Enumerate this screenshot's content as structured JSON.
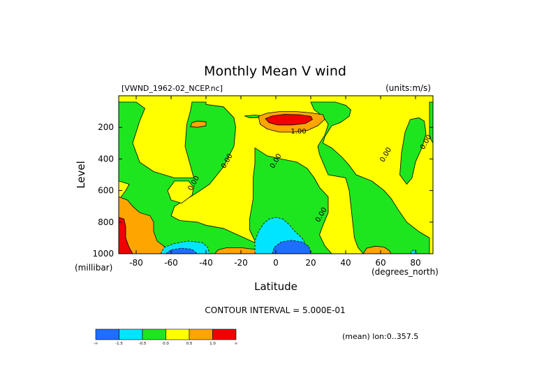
{
  "chart_data": {
    "type": "contour",
    "title": "Monthly Mean V wind",
    "dataset_label": "[VWND_1962-02_NCEP.nc]",
    "units_label": "(units:m/s)",
    "xlabel": "Latitude",
    "x_units_label": "(degrees_north)",
    "ylabel": "Level",
    "y_units_label": "(millibar)",
    "xlim": [
      -90,
      90
    ],
    "ylim": [
      1000,
      0
    ],
    "x_ticks": [
      -80,
      -60,
      -40,
      -20,
      0,
      20,
      40,
      60,
      80
    ],
    "x_tick_labels": [
      "-80",
      "-60",
      "-40",
      "-20",
      "0",
      "20",
      "40",
      "60",
      "80"
    ],
    "y_ticks": [
      200,
      400,
      600,
      800,
      1000
    ],
    "y_tick_labels": [
      "200",
      "400",
      "600",
      "800",
      "1000"
    ],
    "contour_interval_label": "CONTOUR INTERVAL = 5.000E-01",
    "mean_label": "(mean) lon:0..357.5",
    "contour_labels": [
      {
        "text": "1.00",
        "lat": 13,
        "lev": 240
      },
      {
        "text": "0.00",
        "lat": -27,
        "lev": 420
      },
      {
        "text": "0.00",
        "lat": 1,
        "lev": 420
      },
      {
        "text": "0.00",
        "lat": -46,
        "lev": 560
      },
      {
        "text": "0.00",
        "lat": 27,
        "lev": 760
      },
      {
        "text": "0.00",
        "lat": 64,
        "lev": 380
      },
      {
        "text": "0.00",
        "lat": 87,
        "lev": 300
      }
    ],
    "colorbar": {
      "colors": [
        "#1e6eff",
        "#00e5ff",
        "#1ee61e",
        "#ffff00",
        "#ffa500",
        "#f00000"
      ],
      "tick_labels": [
        "-∞",
        "-1.5",
        "-0.5",
        "0.0",
        "0.5",
        "1.0",
        "∞"
      ]
    },
    "regions": [
      {
        "level": "positive_0_0.5",
        "color": "#ffff00",
        "polygon": [
          [
            -90,
            0
          ],
          [
            90,
            0
          ],
          [
            90,
            1000
          ],
          [
            -90,
            1000
          ]
        ]
      },
      {
        "level": "negative_0_-0.5",
        "color": "#1ee61e",
        "polygon": [
          [
            -90,
            40
          ],
          [
            -80,
            40
          ],
          [
            -75,
            80
          ],
          [
            -78,
            160
          ],
          [
            -82,
            300
          ],
          [
            -78,
            420
          ],
          [
            -70,
            480
          ],
          [
            -58,
            520
          ],
          [
            -47,
            520
          ],
          [
            -50,
            400
          ],
          [
            -52,
            320
          ],
          [
            -51,
            180
          ],
          [
            -49,
            100
          ],
          [
            -48,
            40
          ],
          [
            -40,
            40
          ],
          [
            -40,
            55
          ],
          [
            -30,
            70
          ],
          [
            -24,
            140
          ],
          [
            -23,
            200
          ],
          [
            -24,
            320
          ],
          [
            -30,
            450
          ],
          [
            -38,
            560
          ],
          [
            -46,
            620
          ],
          [
            -52,
            660
          ],
          [
            -58,
            700
          ],
          [
            -60,
            760
          ],
          [
            -55,
            790
          ],
          [
            -45,
            800
          ],
          [
            -40,
            820
          ],
          [
            -30,
            840
          ],
          [
            -24,
            870
          ],
          [
            -18,
            900
          ],
          [
            -12,
            930
          ],
          [
            -8,
            970
          ],
          [
            -5,
            1000
          ],
          [
            -90,
            1000
          ],
          [
            -90,
            660
          ],
          [
            -86,
            600
          ],
          [
            -84,
            560
          ],
          [
            -90,
            540
          ]
        ]
      },
      {
        "level": "negative_0_-0.5",
        "color": "#1ee61e",
        "polygon": [
          [
            -12,
            330
          ],
          [
            -5,
            380
          ],
          [
            3,
            400
          ],
          [
            12,
            420
          ],
          [
            18,
            460
          ],
          [
            22,
            520
          ],
          [
            25,
            580
          ],
          [
            30,
            640
          ],
          [
            30,
            740
          ],
          [
            27,
            820
          ],
          [
            25,
            880
          ],
          [
            28,
            950
          ],
          [
            32,
            1000
          ],
          [
            -5,
            1000
          ],
          [
            -5,
            960
          ],
          [
            -12,
            920
          ],
          [
            -15,
            850
          ],
          [
            -15,
            780
          ],
          [
            -13,
            650
          ],
          [
            -13,
            520
          ],
          [
            -12,
            430
          ]
        ]
      },
      {
        "level": "negative_0_-0.5",
        "color": "#1ee61e",
        "polygon": [
          [
            20,
            40
          ],
          [
            34,
            40
          ],
          [
            40,
            60
          ],
          [
            43,
            90
          ],
          [
            42,
            130
          ],
          [
            37,
            170
          ],
          [
            32,
            190
          ],
          [
            28,
            260
          ],
          [
            27,
            300
          ],
          [
            32,
            330
          ],
          [
            38,
            390
          ],
          [
            42,
            440
          ],
          [
            46,
            500
          ],
          [
            55,
            540
          ],
          [
            62,
            600
          ],
          [
            66,
            650
          ],
          [
            70,
            720
          ],
          [
            75,
            800
          ],
          [
            82,
            860
          ],
          [
            88,
            900
          ],
          [
            88,
            1000
          ],
          [
            50,
            1000
          ],
          [
            47,
            960
          ],
          [
            45,
            900
          ],
          [
            44,
            800
          ],
          [
            43,
            700
          ],
          [
            42,
            600
          ],
          [
            40,
            520
          ],
          [
            30,
            500
          ],
          [
            28,
            450
          ],
          [
            25,
            370
          ],
          [
            24,
            320
          ],
          [
            28,
            250
          ],
          [
            30,
            180
          ],
          [
            27,
            130
          ],
          [
            22,
            90
          ]
        ]
      },
      {
        "level": "negative_0_-0.5",
        "color": "#1ee61e",
        "polygon": [
          [
            77,
            150
          ],
          [
            82,
            140
          ],
          [
            85,
            160
          ],
          [
            86,
            240
          ],
          [
            84,
            320
          ],
          [
            80,
            420
          ],
          [
            78,
            520
          ],
          [
            75,
            560
          ],
          [
            71,
            500
          ],
          [
            72,
            360
          ],
          [
            74,
            230
          ]
        ]
      },
      {
        "level": "negative_0_-0.5",
        "color": "#1ee61e",
        "polygon": [
          [
            88,
            40
          ],
          [
            90,
            40
          ],
          [
            90,
            300
          ],
          [
            88,
            260
          ]
        ]
      },
      {
        "level": "negative_0_-0.5",
        "color": "#1ee61e",
        "polygon": [
          [
            -18,
            128
          ],
          [
            -12,
            122
          ],
          [
            -7,
            128
          ],
          [
            -10,
            138
          ],
          [
            -15,
            140
          ]
        ]
      },
      {
        "level": "positive_0_0.5",
        "color": "#ffff00",
        "polygon": [
          [
            -50,
            540
          ],
          [
            -58,
            540
          ],
          [
            -62,
            600
          ],
          [
            -60,
            660
          ],
          [
            -54,
            680
          ],
          [
            -48,
            630
          ],
          [
            -47,
            580
          ]
        ]
      },
      {
        "level": "positive_0.5_1.0",
        "color": "#ffa500",
        "polygon": [
          [
            -10,
            130
          ],
          [
            -5,
            110
          ],
          [
            2,
            100
          ],
          [
            12,
            100
          ],
          [
            20,
            108
          ],
          [
            27,
            120
          ],
          [
            28,
            150
          ],
          [
            24,
            190
          ],
          [
            18,
            220
          ],
          [
            10,
            230
          ],
          [
            2,
            230
          ],
          [
            -5,
            210
          ],
          [
            -9,
            180
          ]
        ]
      },
      {
        "level": "positive_1.0_up",
        "color": "#f00000",
        "polygon": [
          [
            -6,
            145
          ],
          [
            -2,
            128
          ],
          [
            5,
            118
          ],
          [
            13,
            120
          ],
          [
            20,
            130
          ],
          [
            21,
            150
          ],
          [
            17,
            175
          ],
          [
            9,
            185
          ],
          [
            1,
            185
          ],
          [
            -4,
            170
          ]
        ]
      },
      {
        "level": "positive_0.5_1.0",
        "color": "#ffa500",
        "polygon": [
          [
            -48,
            170
          ],
          [
            -45,
            160
          ],
          [
            -40,
            165
          ],
          [
            -40,
            190
          ],
          [
            -45,
            200
          ],
          [
            -49,
            195
          ]
        ]
      },
      {
        "level": "positive_0.5_1.0",
        "color": "#ffa500",
        "polygon": [
          [
            -90,
            640
          ],
          [
            -85,
            660
          ],
          [
            -82,
            700
          ],
          [
            -78,
            740
          ],
          [
            -72,
            760
          ],
          [
            -70,
            800
          ],
          [
            -70,
            860
          ],
          [
            -68,
            920
          ],
          [
            -63,
            960
          ],
          [
            -60,
            1000
          ],
          [
            -90,
            1000
          ]
        ]
      },
      {
        "level": "positive_1.0_up",
        "color": "#f00000",
        "polygon": [
          [
            -90,
            770
          ],
          [
            -87,
            780
          ],
          [
            -86,
            830
          ],
          [
            -86,
            900
          ],
          [
            -84,
            960
          ],
          [
            -82,
            1000
          ],
          [
            -90,
            1000
          ]
        ]
      },
      {
        "level": "positive_0.5_1.0",
        "color": "#ffa500",
        "polygon": [
          [
            -35,
            1000
          ],
          [
            -33,
            975
          ],
          [
            -28,
            962
          ],
          [
            -20,
            962
          ],
          [
            -12,
            972
          ],
          [
            -10,
            1000
          ]
        ]
      },
      {
        "level": "positive_0.5_1.0",
        "color": "#ffa500",
        "polygon": [
          [
            50,
            1000
          ],
          [
            52,
            965
          ],
          [
            57,
            952
          ],
          [
            62,
            958
          ],
          [
            65,
            980
          ],
          [
            66,
            1000
          ]
        ]
      },
      {
        "level": "negative_-0.5_-1.5",
        "color": "#00e5ff",
        "polygon": [
          [
            -12,
            1000
          ],
          [
            -12,
            920
          ],
          [
            -10,
            860
          ],
          [
            -7,
            810
          ],
          [
            -4,
            780
          ],
          [
            0,
            770
          ],
          [
            4,
            780
          ],
          [
            8,
            820
          ],
          [
            11,
            860
          ],
          [
            15,
            900
          ],
          [
            17,
            940
          ],
          [
            18,
            1000
          ]
        ]
      },
      {
        "level": "negative_-0.5_-1.5",
        "color": "#00e5ff",
        "polygon": [
          [
            -66,
            1000
          ],
          [
            -64,
            960
          ],
          [
            -58,
            935
          ],
          [
            -50,
            920
          ],
          [
            -42,
            930
          ],
          [
            -39,
            960
          ],
          [
            -38,
            1000
          ]
        ]
      },
      {
        "level": "negative_below_-1.5",
        "color": "#1e6eff",
        "polygon": [
          [
            -2,
            1000
          ],
          [
            -1,
            960
          ],
          [
            3,
            925
          ],
          [
            9,
            915
          ],
          [
            15,
            925
          ],
          [
            19,
            955
          ],
          [
            20,
            1000
          ]
        ]
      },
      {
        "level": "negative_below_-1.5",
        "color": "#1e6eff",
        "polygon": [
          [
            -63,
            1000
          ],
          [
            -60,
            975
          ],
          [
            -54,
            965
          ],
          [
            -48,
            972
          ],
          [
            -45,
            1000
          ]
        ]
      },
      {
        "level": "negative_-0.5_-1.5",
        "color": "#00e5ff",
        "polygon": [
          [
            77,
            1000
          ],
          [
            78,
            980
          ],
          [
            80,
            975
          ],
          [
            81,
            1000
          ]
        ]
      }
    ]
  }
}
